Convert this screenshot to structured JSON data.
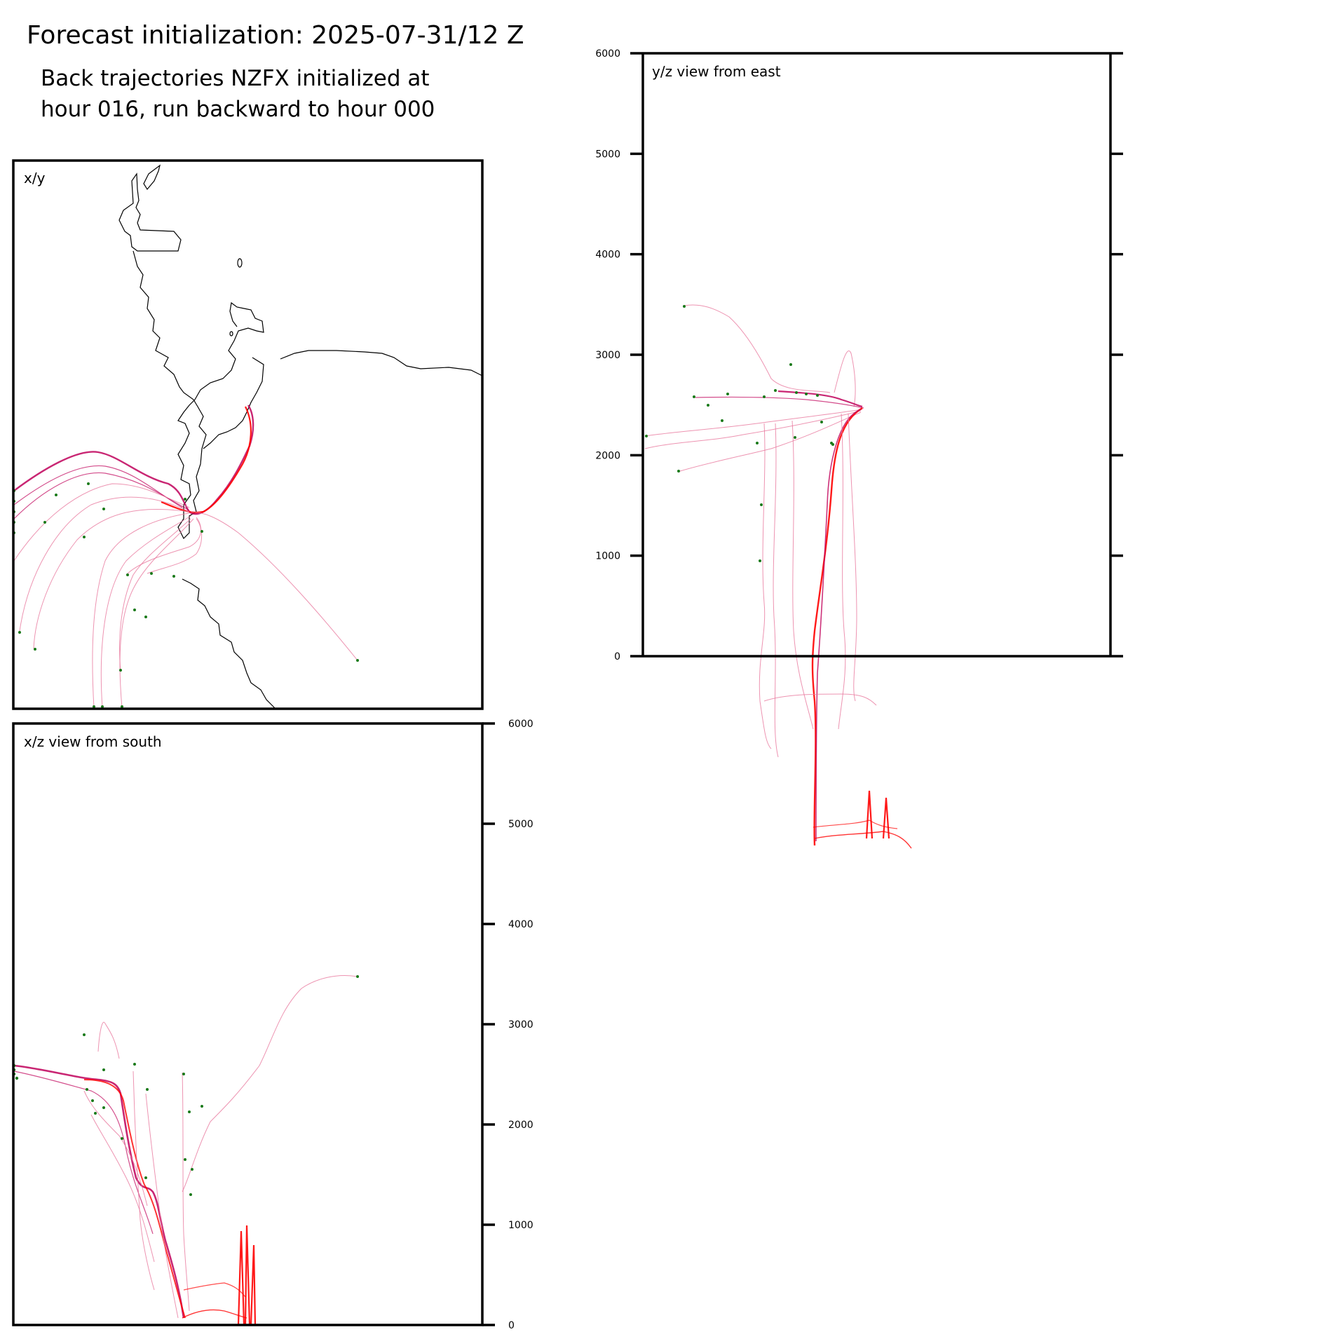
{
  "title": "Forecast initialization: 2025-07-31/12 Z",
  "subtitle_lines": [
    "Back trajectories NZFX initialized at",
    "hour 016, run backward to hour 000"
  ],
  "colors": {
    "axis": "#000000",
    "coastline": "#000000",
    "trajectory_recent": "#ff0000",
    "trajectory_early": "#c0005a",
    "trajectory_faint": "#e8789e",
    "endpoint": "#1a7a1a"
  },
  "chart_data": [
    {
      "type": "line",
      "panel": "x/y",
      "label": "x/y",
      "grid": false,
      "has_coastline": true,
      "description_of_content": "",
      "series": []
    },
    {
      "type": "line",
      "panel": "y/z",
      "label": "y/z view from east",
      "ylim": [
        0,
        6000
      ],
      "yticks": [
        0,
        1000,
        2000,
        3000,
        4000,
        5000,
        6000
      ],
      "ytick_side": "left",
      "grid": false
    },
    {
      "type": "line",
      "panel": "x/z",
      "label": "x/z view from south",
      "ylim": [
        0,
        6000
      ],
      "yticks": [
        0,
        1000,
        2000,
        3000,
        4000,
        5000,
        6000
      ],
      "ytick_side": "right",
      "grid": false
    }
  ]
}
